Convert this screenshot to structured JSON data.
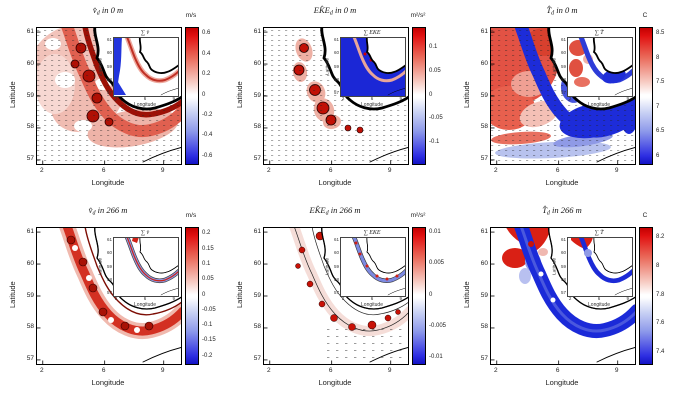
{
  "figure": {
    "colors": {
      "positive_max": "#c40000",
      "negative_max": "#1212c4",
      "zero": "#ffffff",
      "coastline": "#000000",
      "background": "#ffffff"
    }
  },
  "panels": [
    {
      "id": "v-0m",
      "title": {
        "sym": "v̂",
        "sub": "d",
        "rest": " in 0 m"
      },
      "unit": "m/s",
      "xlabel": "Longitude",
      "ylabel": "Latitude",
      "xticks": [
        "2",
        "6",
        "9"
      ],
      "yticks": [
        "61",
        "60",
        "59",
        "58",
        "57"
      ],
      "cbar_ticks": [
        "0.6",
        "0.4",
        "0.2",
        "0",
        "-0.2",
        "-0.4",
        "-0.6"
      ],
      "inset": {
        "title": "∑ v̄",
        "xlabel": "Longitude",
        "ylabel": "Latitude",
        "xticks": [
          "2",
          "6",
          "9"
        ],
        "yticks": [
          "61",
          "60",
          "59",
          "58",
          "57"
        ]
      },
      "map_style": "v0"
    },
    {
      "id": "eke-0m",
      "title": {
        "sym": "EK̂E",
        "sub": "d",
        "rest": " in 0 m"
      },
      "unit": "m²/s²",
      "xlabel": "Longitude",
      "ylabel": "Latitude",
      "xticks": [
        "2",
        "6",
        "9"
      ],
      "yticks": [
        "61",
        "60",
        "59",
        "58",
        "57"
      ],
      "cbar_ticks": [
        "0.1",
        "0.05",
        "0",
        "-0.05",
        "-0.1"
      ],
      "inset": {
        "title": "∑ EKE",
        "xlabel": "Longitude",
        "ylabel": "Latitude",
        "xticks": [
          "2",
          "6",
          "9"
        ],
        "yticks": [
          "61",
          "60",
          "59",
          "58",
          "57"
        ]
      },
      "map_style": "eke0"
    },
    {
      "id": "t-0m",
      "title": {
        "sym": "T̂",
        "sub": "d",
        "rest": " in 0 m"
      },
      "unit": "C",
      "xlabel": "Longitude",
      "ylabel": "Latitude",
      "xticks": [
        "2",
        "6",
        "9"
      ],
      "yticks": [
        "61",
        "60",
        "59",
        "58",
        "57"
      ],
      "cbar_ticks": [
        "8.5",
        "8",
        "7.5",
        "7",
        "6.5",
        "6"
      ],
      "inset": {
        "title": "∑ T̄",
        "xlabel": "Longitude",
        "ylabel": "Latitude",
        "xticks": [
          "2",
          "6",
          "9"
        ],
        "yticks": [
          "61",
          "60",
          "59",
          "58",
          "57"
        ]
      },
      "map_style": "t0"
    },
    {
      "id": "v-266m",
      "title": {
        "sym": "v̂",
        "sub": "d",
        "rest": " in 266 m"
      },
      "unit": "m/s",
      "xlabel": "Longitude",
      "ylabel": "Latitude",
      "xticks": [
        "2",
        "6",
        "9"
      ],
      "yticks": [
        "61",
        "60",
        "59",
        "58",
        "57"
      ],
      "cbar_ticks": [
        "0.2",
        "0.15",
        "0.1",
        "0.05",
        "0",
        "-0.05",
        "-0.1",
        "-0.15",
        "-0.2"
      ],
      "inset": {
        "title": "∑ v̄",
        "xlabel": "Longitude",
        "ylabel": "Latitude",
        "xticks": [
          "2",
          "6",
          "9"
        ],
        "yticks": [
          "61",
          "60",
          "59",
          "58",
          "57"
        ]
      },
      "map_style": "v266"
    },
    {
      "id": "eke-266m",
      "title": {
        "sym": "EK̂E",
        "sub": "d",
        "rest": " in 266 m"
      },
      "unit": "m²/s²",
      "xlabel": "Longitude",
      "ylabel": "Latitude",
      "xticks": [
        "2",
        "6",
        "9"
      ],
      "yticks": [
        "61",
        "60",
        "59",
        "58",
        "57"
      ],
      "cbar_ticks": [
        "0.01",
        "0.005",
        "0",
        "-0.005",
        "-0.01"
      ],
      "inset": {
        "title": "∑ EKE",
        "xlabel": "Longitude",
        "ylabel": "Latitude",
        "xticks": [
          "2",
          "6",
          "9"
        ],
        "yticks": [
          "61",
          "60",
          "59",
          "58",
          "57"
        ]
      },
      "map_style": "eke266"
    },
    {
      "id": "t-266m",
      "title": {
        "sym": "T̂",
        "sub": "d",
        "rest": " in 266 m"
      },
      "unit": "C",
      "xlabel": "Longitude",
      "ylabel": "Latitude",
      "xticks": [
        "2",
        "6",
        "9"
      ],
      "yticks": [
        "61",
        "60",
        "59",
        "58",
        "57"
      ],
      "cbar_ticks": [
        "8.2",
        "8",
        "7.8",
        "7.6",
        "7.4"
      ],
      "inset": {
        "title": "∑ T̄",
        "xlabel": "Longitude",
        "ylabel": "Latitude",
        "xticks": [
          "2",
          "6",
          "9"
        ],
        "yticks": [
          "61",
          "60",
          "59",
          "58",
          "57"
        ]
      },
      "map_style": "t266"
    }
  ],
  "chart_data": [
    {
      "type": "heatmap",
      "variable": "v̂_d",
      "depth_m": 0,
      "title": "v̂_d in 0 m",
      "xlabel": "Longitude",
      "ylabel": "Latitude",
      "xlim": [
        1.5,
        10
      ],
      "ylim": [
        56.9,
        61.2
      ],
      "xticks": [
        2,
        6,
        9
      ],
      "yticks": [
        61,
        60,
        59,
        58,
        57
      ],
      "colorbar": {
        "label": "m/s",
        "ticks": [
          0.6,
          0.4,
          0.2,
          0,
          -0.2,
          -0.4,
          -0.6
        ],
        "colormap": "blue-white-red"
      },
      "inset_title": "∑ v̄",
      "legend_position": "right"
    },
    {
      "type": "heatmap",
      "variable": "EK̂E_d",
      "depth_m": 0,
      "title": "EK̂E_d in 0 m",
      "xlabel": "Longitude",
      "ylabel": "Latitude",
      "xlim": [
        1.5,
        10
      ],
      "ylim": [
        56.9,
        61.2
      ],
      "xticks": [
        2,
        6,
        9
      ],
      "yticks": [
        61,
        60,
        59,
        58,
        57
      ],
      "colorbar": {
        "label": "m²/s²",
        "ticks": [
          0.1,
          0.05,
          0,
          -0.05,
          -0.1
        ],
        "colormap": "blue-white-red"
      },
      "inset_title": "∑ EKE",
      "legend_position": "right"
    },
    {
      "type": "heatmap",
      "variable": "T̂_d",
      "depth_m": 0,
      "title": "T̂_d in 0 m",
      "xlabel": "Longitude",
      "ylabel": "Latitude",
      "xlim": [
        1.5,
        10
      ],
      "ylim": [
        56.9,
        61.2
      ],
      "xticks": [
        2,
        6,
        9
      ],
      "yticks": [
        61,
        60,
        59,
        58,
        57
      ],
      "colorbar": {
        "label": "C",
        "ticks": [
          8.5,
          8,
          7.5,
          7,
          6.5,
          6
        ],
        "colormap": "blue-white-red"
      },
      "inset_title": "∑ T̄",
      "legend_position": "right"
    },
    {
      "type": "heatmap",
      "variable": "v̂_d",
      "depth_m": 266,
      "title": "v̂_d in 266 m",
      "xlabel": "Longitude",
      "ylabel": "Latitude",
      "xlim": [
        1.5,
        10
      ],
      "ylim": [
        56.9,
        61.2
      ],
      "xticks": [
        2,
        6,
        9
      ],
      "yticks": [
        61,
        60,
        59,
        58,
        57
      ],
      "colorbar": {
        "label": "m/s",
        "ticks": [
          0.2,
          0.15,
          0.1,
          0.05,
          0,
          -0.05,
          -0.1,
          -0.15,
          -0.2
        ],
        "colormap": "blue-white-red"
      },
      "inset_title": "∑ v̄",
      "legend_position": "right"
    },
    {
      "type": "heatmap",
      "variable": "EK̂E_d",
      "depth_m": 266,
      "title": "EK̂E_d in 266 m",
      "xlabel": "Longitude",
      "ylabel": "Latitude",
      "xlim": [
        1.5,
        10
      ],
      "ylim": [
        56.9,
        61.2
      ],
      "xticks": [
        2,
        6,
        9
      ],
      "yticks": [
        61,
        60,
        59,
        58,
        57
      ],
      "colorbar": {
        "label": "m²/s²",
        "ticks": [
          0.01,
          0.005,
          0,
          -0.005,
          -0.01
        ],
        "colormap": "blue-white-red"
      },
      "inset_title": "∑ EKE",
      "legend_position": "right"
    },
    {
      "type": "heatmap",
      "variable": "T̂_d",
      "depth_m": 266,
      "title": "T̂_d in 266 m",
      "xlabel": "Longitude",
      "ylabel": "Latitude",
      "xlim": [
        1.5,
        10
      ],
      "ylim": [
        56.9,
        61.2
      ],
      "xticks": [
        2,
        6,
        9
      ],
      "yticks": [
        61,
        60,
        59,
        58,
        57
      ],
      "colorbar": {
        "label": "C",
        "ticks": [
          8.2,
          8,
          7.8,
          7.6,
          7.4
        ],
        "colormap": "blue-white-red"
      },
      "inset_title": "∑ T̄",
      "legend_position": "right"
    }
  ]
}
